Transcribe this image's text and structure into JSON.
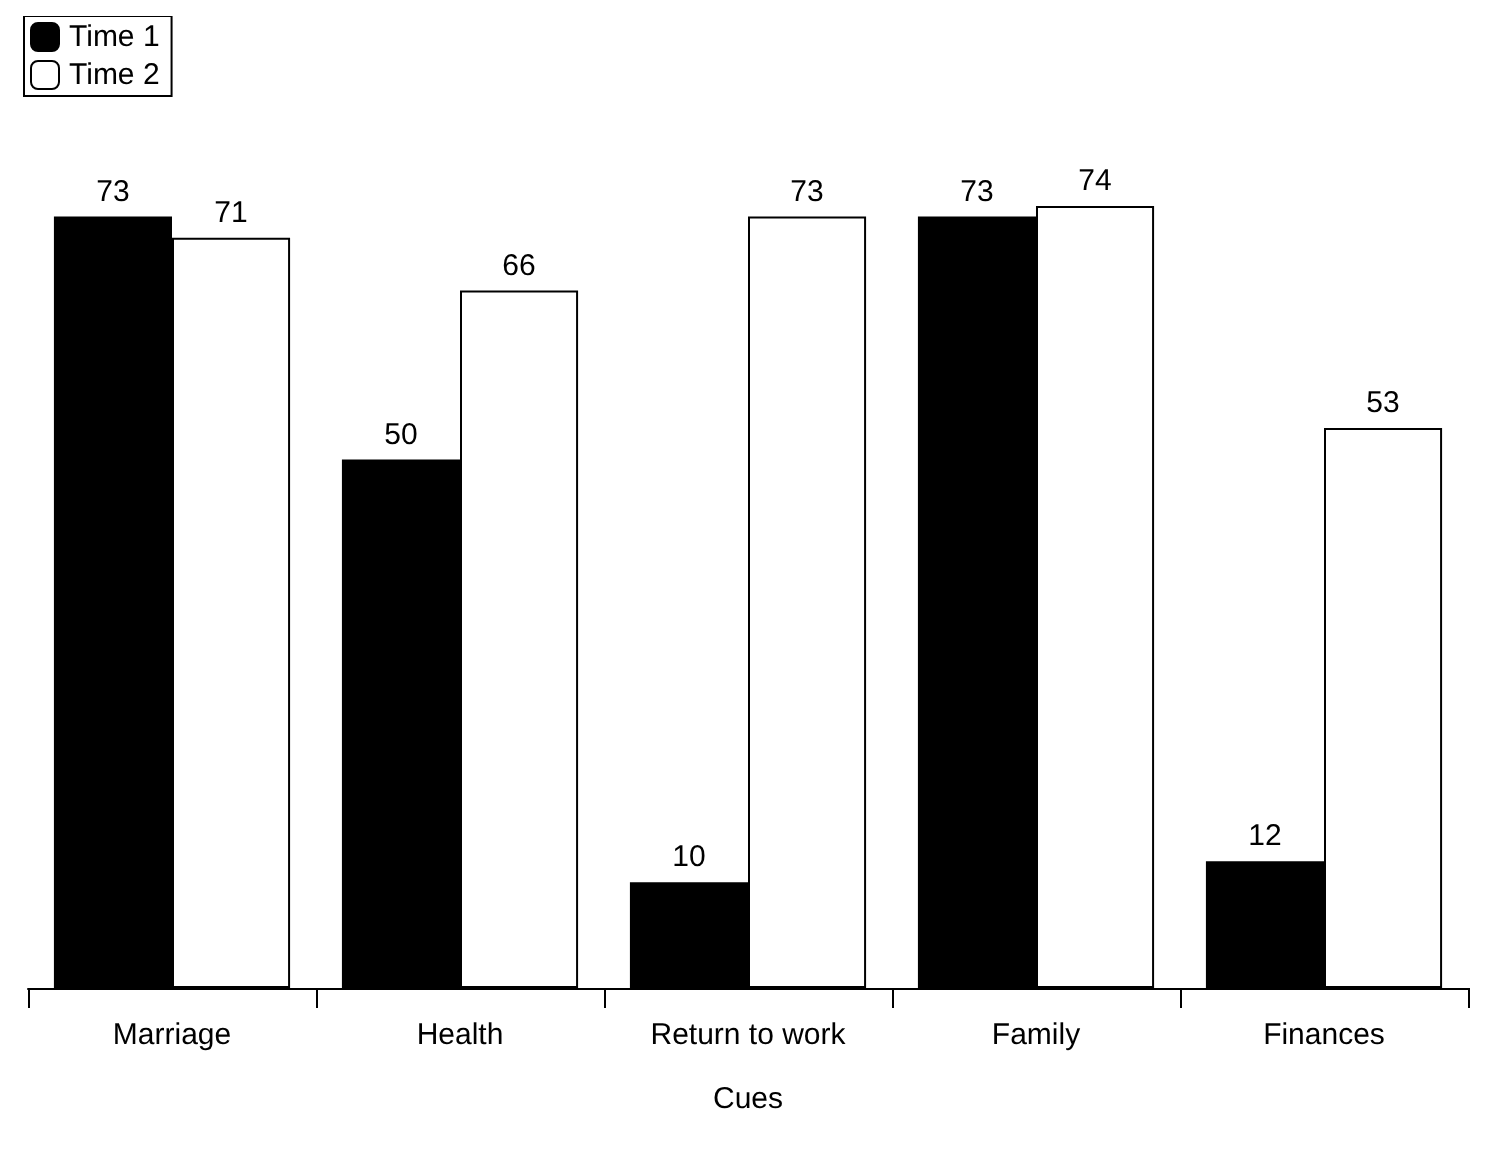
{
  "chart_data": {
    "type": "bar",
    "xlabel": "Cues",
    "categories": [
      "Marriage",
      "Health",
      "Return to work",
      "Family",
      "Finances"
    ],
    "series": [
      {
        "name": "Time 1",
        "color": "#000000",
        "values": [
          73,
          50,
          10,
          73,
          12
        ]
      },
      {
        "name": "Time 2",
        "color": "#ffffff",
        "values": [
          71,
          66,
          73,
          74,
          53
        ]
      }
    ],
    "data_labels": true,
    "legend": "top left",
    "grid": false
  }
}
